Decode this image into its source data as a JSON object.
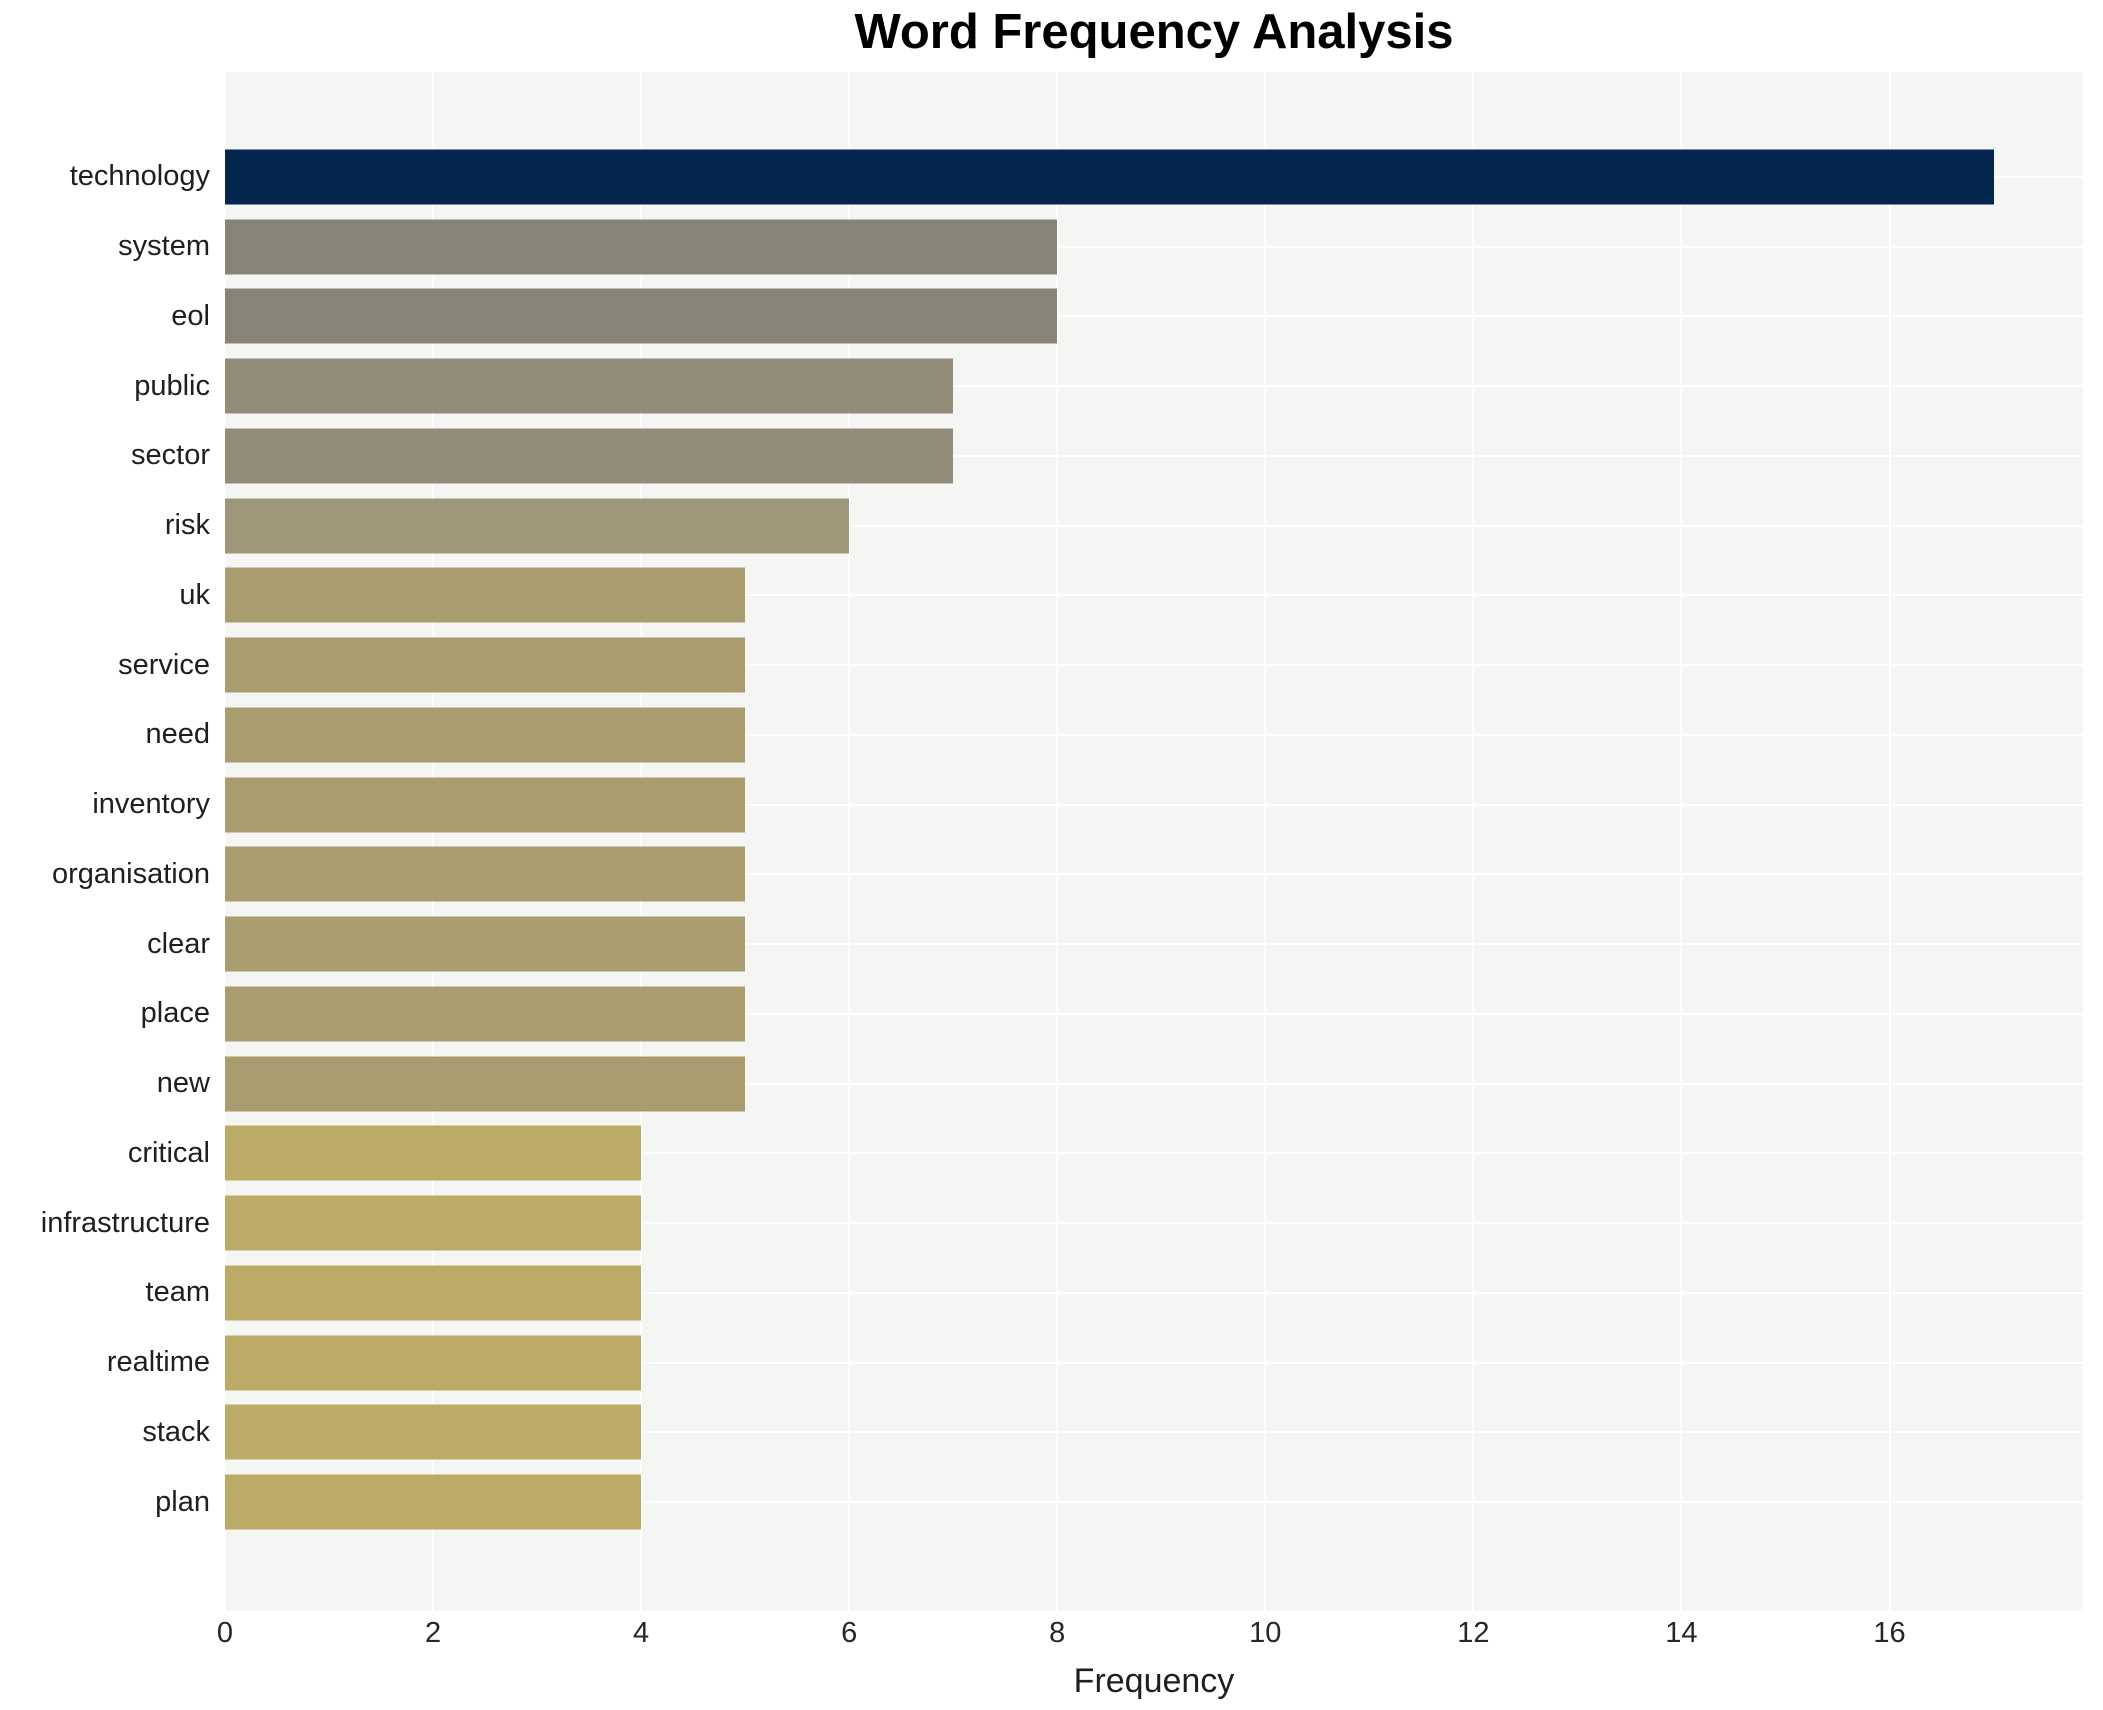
{
  "chart_data": {
    "type": "bar",
    "orientation": "horizontal",
    "title": "Word Frequency Analysis",
    "xlabel": "Frequency",
    "ylabel": "",
    "categories": [
      "technology",
      "system",
      "eol",
      "public",
      "sector",
      "risk",
      "uk",
      "service",
      "need",
      "inventory",
      "organisation",
      "clear",
      "place",
      "new",
      "critical",
      "infrastructure",
      "team",
      "realtime",
      "stack",
      "plan"
    ],
    "values": [
      17,
      8,
      8,
      7,
      7,
      6,
      5,
      5,
      5,
      5,
      5,
      5,
      5,
      5,
      4,
      4,
      4,
      4,
      4,
      4
    ],
    "bar_colors": [
      "#04254e",
      "#878377",
      "#878377",
      "#928c78",
      "#928c78",
      "#9d9679",
      "#a99d6f",
      "#a99d6f",
      "#a99d6f",
      "#a99d6f",
      "#a99d6f",
      "#a99d6f",
      "#a99d6f",
      "#a99d6f",
      "#bcab67",
      "#bcab67",
      "#bcab67",
      "#bcab67",
      "#bcab67",
      "#bcab67"
    ],
    "xticks": [
      0,
      2,
      4,
      6,
      8,
      10,
      12,
      14,
      16
    ],
    "xlim": [
      0,
      17.86
    ],
    "grid": true,
    "legend": "none",
    "plot_bg": "#f5f5f3",
    "grid_color": "#ffffff",
    "text_color": "#1f1f1f"
  }
}
